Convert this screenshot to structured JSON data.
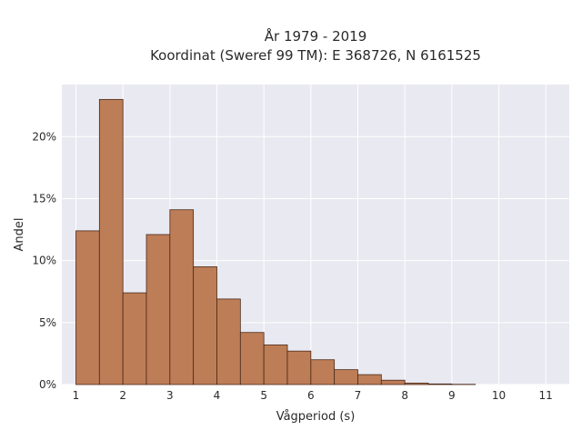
{
  "chart_data": {
    "type": "bar",
    "title": "År 1979 - 2019",
    "subtitle": "Koordinat (Sweref 99 TM): E 368726, N 6161525",
    "xlabel": "Vågperiod (s)",
    "ylabel": "Andel",
    "bin_width": 0.5,
    "bins": [
      {
        "start": 1.0,
        "end": 1.5,
        "value": 12.4
      },
      {
        "start": 1.5,
        "end": 2.0,
        "value": 23.0
      },
      {
        "start": 2.0,
        "end": 2.5,
        "value": 7.4
      },
      {
        "start": 2.5,
        "end": 3.0,
        "value": 12.1
      },
      {
        "start": 3.0,
        "end": 3.5,
        "value": 14.1
      },
      {
        "start": 3.5,
        "end": 4.0,
        "value": 9.5
      },
      {
        "start": 4.0,
        "end": 4.5,
        "value": 6.9
      },
      {
        "start": 4.5,
        "end": 5.0,
        "value": 4.2
      },
      {
        "start": 5.0,
        "end": 5.5,
        "value": 3.2
      },
      {
        "start": 5.5,
        "end": 6.0,
        "value": 2.7
      },
      {
        "start": 6.0,
        "end": 6.5,
        "value": 2.0
      },
      {
        "start": 6.5,
        "end": 7.0,
        "value": 1.2
      },
      {
        "start": 7.0,
        "end": 7.5,
        "value": 0.8
      },
      {
        "start": 7.5,
        "end": 8.0,
        "value": 0.35
      },
      {
        "start": 8.0,
        "end": 8.5,
        "value": 0.12
      },
      {
        "start": 8.5,
        "end": 9.0,
        "value": 0.05
      },
      {
        "start": 9.0,
        "end": 9.5,
        "value": 0.02
      }
    ],
    "x_ticks": [
      1,
      2,
      3,
      4,
      5,
      6,
      7,
      8,
      9,
      10,
      11
    ],
    "y_ticks": [
      0,
      5,
      10,
      15,
      20
    ],
    "y_tick_labels": [
      "0%",
      "5%",
      "10%",
      "15%",
      "20%"
    ],
    "xlim": [
      0.7,
      11.5
    ],
    "ylim": [
      0,
      24.2
    ],
    "grid": true,
    "colors": {
      "bar_fill": "#bd7d57",
      "bar_edge": "#4a2a1a",
      "plot_background": "#e9e9f1",
      "grid": "#ffffff"
    }
  }
}
